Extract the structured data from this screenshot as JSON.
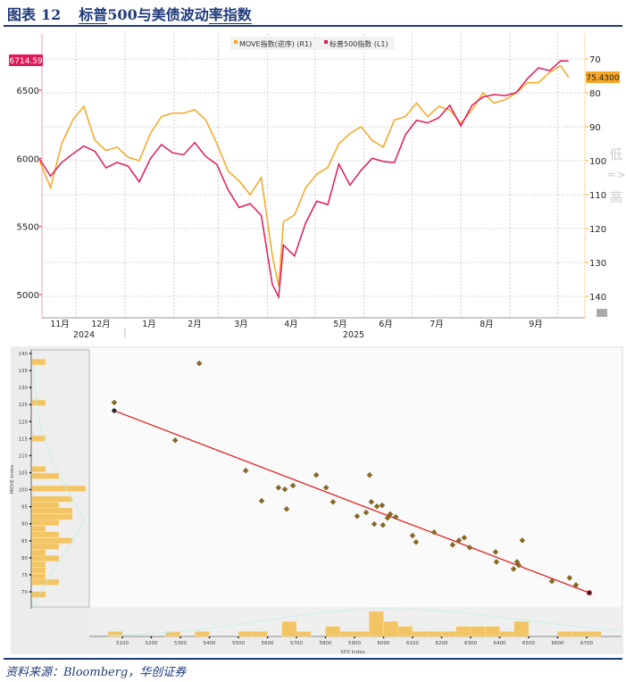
{
  "title": {
    "label": "图表",
    "number": "12",
    "text_a": "标普",
    "text_b": "500与美债波动",
    "text_c": "率指数"
  },
  "source": "资料来源：Bloomberg，华创证券",
  "colors": {
    "spx": "#e0195a",
    "move": "#f5a623",
    "navy": "#1f3a7a",
    "hist": "#f2c463",
    "regression": "#e02020",
    "point": "#8a6a1e"
  },
  "chart_data": [
    {
      "type": "line",
      "legend": [
        "MOVE指数(逆序) (R1)",
        "标普500指数 (L1)"
      ],
      "left_axis": {
        "ticks": [
          5000,
          5500,
          6000,
          6500
        ],
        "range": [
          4850,
          6900
        ]
      },
      "right_axis": {
        "ticks": [
          70,
          80,
          90,
          100,
          110,
          120,
          130,
          140
        ],
        "inverted": true,
        "watermark": "低 => 高"
      },
      "last_labels": {
        "spx": "6714.59",
        "move": "75.4300"
      },
      "months": [
        "11月",
        "12月",
        "1月",
        "2月",
        "3月",
        "4月",
        "5月",
        "6月",
        "7月",
        "8月",
        "9月"
      ],
      "years": [
        "2024",
        "2025"
      ],
      "x": [
        "2024-11-08",
        "2024-11-15",
        "2024-11-22",
        "2024-11-29",
        "2024-12-06",
        "2024-12-13",
        "2024-12-20",
        "2024-12-27",
        "2025-01-03",
        "2025-01-10",
        "2025-01-17",
        "2025-01-24",
        "2025-01-31",
        "2025-02-07",
        "2025-02-14",
        "2025-02-21",
        "2025-02-28",
        "2025-03-07",
        "2025-03-14",
        "2025-03-21",
        "2025-03-28",
        "2025-04-04",
        "2025-04-08",
        "2025-04-11",
        "2025-04-18",
        "2025-04-25",
        "2025-05-02",
        "2025-05-09",
        "2025-05-16",
        "2025-05-23",
        "2025-05-30",
        "2025-06-06",
        "2025-06-13",
        "2025-06-20",
        "2025-06-27",
        "2025-07-04",
        "2025-07-11",
        "2025-07-18",
        "2025-07-25",
        "2025-08-01",
        "2025-08-08",
        "2025-08-15",
        "2025-08-22",
        "2025-08-29",
        "2025-09-05",
        "2025-09-12",
        "2025-09-19",
        "2025-09-26",
        "2025-10-03",
        "2025-10-08"
      ],
      "series": [
        {
          "name": "标普500指数",
          "axis": "left",
          "values": [
            5995,
            5870,
            5969,
            6032,
            6090,
            6051,
            5930,
            5970,
            5942,
            5827,
            5997,
            6101,
            6040,
            6026,
            6115,
            6013,
            5955,
            5770,
            5639,
            5667,
            5581,
            5074,
            4982,
            5363,
            5283,
            5525,
            5686,
            5660,
            5958,
            5803,
            5912,
            6000,
            5977,
            5968,
            6173,
            6279,
            6260,
            6297,
            6389,
            6238,
            6389,
            6450,
            6467,
            6460,
            6482,
            6584,
            6664,
            6643,
            6715,
            6714.59
          ]
        },
        {
          "name": "MOVE指数",
          "axis": "right",
          "values": [
            100,
            108,
            95,
            88,
            84,
            94,
            97,
            96,
            99,
            100,
            92,
            87,
            86,
            86,
            85,
            88,
            95,
            103,
            106,
            110,
            105,
            128,
            137,
            118,
            116,
            108,
            104,
            102,
            95,
            92,
            90,
            94,
            96,
            88,
            87,
            83,
            87,
            84,
            85,
            89,
            85,
            80,
            83,
            82,
            80,
            77,
            77,
            74,
            72,
            75.43
          ]
        }
      ]
    },
    {
      "type": "scatter",
      "xlabel": "SPX Index",
      "ylabel": "MOVE Index",
      "x_ticks": [
        5100,
        5200,
        5300,
        5400,
        5500,
        5600,
        5700,
        5800,
        5900,
        6000,
        6100,
        6200,
        6300,
        6400,
        6500,
        6600,
        6700
      ],
      "y_ticks": [
        70,
        75,
        80,
        85,
        90,
        95,
        100,
        105,
        110,
        115,
        120,
        125,
        130,
        135,
        140
      ],
      "points": [
        [
          5072,
          125.6
        ],
        [
          5282,
          114.5
        ],
        [
          5365,
          137.1
        ],
        [
          5525,
          105.6
        ],
        [
          5580,
          96.7
        ],
        [
          5638,
          100.6
        ],
        [
          5660,
          100.1
        ],
        [
          5666,
          94.3
        ],
        [
          5688,
          101.2
        ],
        [
          5768,
          104.3
        ],
        [
          5802,
          100.6
        ],
        [
          5826,
          96.4
        ],
        [
          5909,
          92.2
        ],
        [
          5940,
          93.3
        ],
        [
          5952,
          104.3
        ],
        [
          5958,
          96.4
        ],
        [
          5968,
          89.9
        ],
        [
          5977,
          95.1
        ],
        [
          5995,
          95.4
        ],
        [
          5998,
          89.6
        ],
        [
          6014,
          91.7
        ],
        [
          6023,
          92.8
        ],
        [
          6042,
          92.0
        ],
        [
          6100,
          86.5
        ],
        [
          6112,
          84.6
        ],
        [
          6174,
          87.5
        ],
        [
          6238,
          83.8
        ],
        [
          6260,
          85.1
        ],
        [
          6278,
          85.9
        ],
        [
          6297,
          83.0
        ],
        [
          6386,
          81.7
        ],
        [
          6389,
          78.8
        ],
        [
          6448,
          76.7
        ],
        [
          6460,
          78.8
        ],
        [
          6466,
          77.8
        ],
        [
          6478,
          85.1
        ],
        [
          6580,
          73.1
        ],
        [
          6641,
          74.1
        ],
        [
          6663,
          72.0
        ]
      ],
      "regression": [
        [
          5072,
          123.2
        ],
        [
          6709,
          69.7
        ]
      ],
      "latest": [
        6709,
        69.7
      ],
      "x_hist": [
        [
          5050,
          1
        ],
        [
          5250,
          1
        ],
        [
          5350,
          1
        ],
        [
          5500,
          1
        ],
        [
          5550,
          1
        ],
        [
          5650,
          3
        ],
        [
          5700,
          1
        ],
        [
          5800,
          2
        ],
        [
          5850,
          1
        ],
        [
          5900,
          1
        ],
        [
          5950,
          5
        ],
        [
          6000,
          3
        ],
        [
          6050,
          2
        ],
        [
          6100,
          1
        ],
        [
          6150,
          1
        ],
        [
          6200,
          1
        ],
        [
          6250,
          2
        ],
        [
          6300,
          2
        ],
        [
          6350,
          2
        ],
        [
          6400,
          1
        ],
        [
          6450,
          3
        ],
        [
          6600,
          1
        ],
        [
          6650,
          1
        ],
        [
          6700,
          1
        ]
      ],
      "y_hist": [
        [
          137.5,
          1
        ],
        [
          125.5,
          1
        ],
        [
          115,
          1
        ],
        [
          106,
          1
        ],
        [
          104,
          2
        ],
        [
          100.3,
          4
        ],
        [
          97.2,
          3
        ],
        [
          95.5,
          2
        ],
        [
          93.8,
          3
        ],
        [
          92,
          3
        ],
        [
          90.3,
          2
        ],
        [
          88.5,
          1
        ],
        [
          86.8,
          2
        ],
        [
          85,
          3
        ],
        [
          83.3,
          2
        ],
        [
          81.5,
          1
        ],
        [
          79.8,
          2
        ],
        [
          78,
          1
        ],
        [
          76.3,
          1
        ],
        [
          74.5,
          1
        ],
        [
          72.8,
          2
        ],
        [
          69.2,
          1
        ]
      ]
    }
  ]
}
